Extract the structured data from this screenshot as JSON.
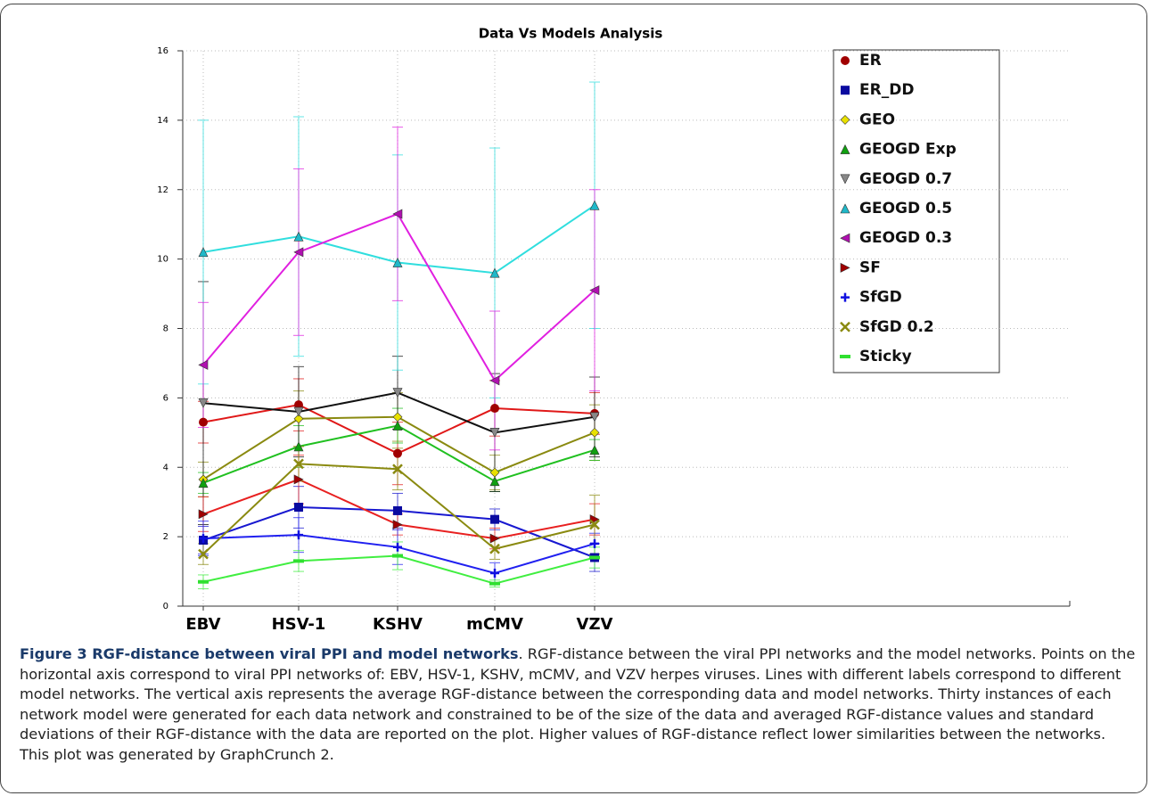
{
  "chart_data": {
    "type": "line",
    "title": "Data Vs Models Analysis",
    "categories": [
      "EBV",
      "HSV-1",
      "KSHV",
      "mCMV",
      "VZV"
    ],
    "ylim": [
      0,
      16
    ],
    "yticks": [
      0,
      2,
      4,
      6,
      8,
      10,
      12,
      14,
      16
    ],
    "grid": true,
    "legend": "right",
    "series": [
      {
        "name": "ER",
        "color": "#e01818",
        "marker_color": "#a00000",
        "marker": "circle",
        "values": [
          5.3,
          5.8,
          4.4,
          5.7,
          5.55
        ],
        "errors": [
          0.6,
          0.75,
          0.9,
          0.8,
          0.6
        ]
      },
      {
        "name": "ER_DD",
        "color": "#1818d0",
        "marker_color": "#0a0aa0",
        "marker": "square",
        "values": [
          1.9,
          2.85,
          2.75,
          2.5,
          1.4
        ],
        "errors": [
          0.4,
          0.6,
          0.5,
          0.3,
          0.4
        ]
      },
      {
        "name": "GEO",
        "color": "#8a8a10",
        "marker_color": "#e8e000",
        "marker": "diamond",
        "values": [
          3.65,
          5.4,
          5.45,
          3.85,
          5.0
        ],
        "errors": [
          0.5,
          0.8,
          0.7,
          0.5,
          0.8
        ]
      },
      {
        "name": "GEOGD Exp",
        "color": "#20c020",
        "marker_color": "#10a010",
        "marker": "triangle",
        "values": [
          3.55,
          4.6,
          5.2,
          3.6,
          4.5
        ],
        "errors": [
          0.3,
          0.6,
          0.5,
          0.3,
          0.3
        ]
      },
      {
        "name": "GEOGD 0.7",
        "color": "#111111",
        "marker_color": "#888888",
        "marker": "triangle-down",
        "values": [
          5.85,
          5.6,
          6.15,
          5.0,
          5.45
        ],
        "errors": [
          3.5,
          1.3,
          1.05,
          1.7,
          1.15
        ]
      },
      {
        "name": "GEOGD 0.5",
        "color": "#30dede",
        "marker_color": "#20b8c8",
        "marker": "triangle",
        "values": [
          10.2,
          10.65,
          9.9,
          9.6,
          11.55
        ],
        "errors": [
          3.8,
          3.45,
          3.1,
          3.6,
          3.55
        ]
      },
      {
        "name": "GEOGD 0.3",
        "color": "#e020e0",
        "marker_color": "#b010b0",
        "marker": "triangle-left",
        "values": [
          6.95,
          10.2,
          11.3,
          6.5,
          9.1
        ],
        "errors": [
          1.8,
          2.4,
          2.5,
          2.0,
          2.9
        ]
      },
      {
        "name": "SF",
        "color": "#e82020",
        "marker_color": "#a00000",
        "marker": "triangle-right",
        "values": [
          2.65,
          3.65,
          2.35,
          1.95,
          2.5
        ],
        "errors": [
          0.5,
          0.7,
          0.3,
          0.3,
          0.45
        ]
      },
      {
        "name": "SfGD",
        "color": "#2020f0",
        "marker_color": "#1010e0",
        "marker": "plus",
        "values": [
          1.95,
          2.05,
          1.7,
          0.95,
          1.8
        ],
        "errors": [
          0.5,
          0.5,
          0.5,
          0.3,
          0.3
        ]
      },
      {
        "name": "SfGD 0.2",
        "color": "#8a8a10",
        "marker_color": "#8a8a10",
        "marker": "cross",
        "values": [
          1.5,
          4.1,
          3.95,
          1.65,
          2.35
        ],
        "errors": [
          0.3,
          0.5,
          0.6,
          0.3,
          0.85
        ]
      },
      {
        "name": "Sticky",
        "color": "#40ee40",
        "marker_color": "#30e030",
        "marker": "dash",
        "values": [
          0.7,
          1.3,
          1.45,
          0.65,
          1.4
        ],
        "errors": [
          0.2,
          0.3,
          0.4,
          0.1,
          0.3
        ]
      }
    ]
  },
  "caption": {
    "label": "Figure 3 RGF-distance between viral PPI and model networks",
    "text": ". RGF-distance between the viral PPI networks and the model networks. Points on the horizontal axis correspond to viral PPI networks of: EBV, HSV-1, KSHV, mCMV, and VZV herpes viruses. Lines with different labels correspond to different model networks. The vertical axis represents the average RGF-distance between the corresponding data and model networks. Thirty instances of each network model were generated for each data network and constrained to be of the size of the data and averaged RGF-distance values and standard deviations of their RGF-distance with the data are reported on the plot. Higher values of RGF-distance reflect lower similarities between the networks. This plot was generated by GraphCrunch 2."
  }
}
